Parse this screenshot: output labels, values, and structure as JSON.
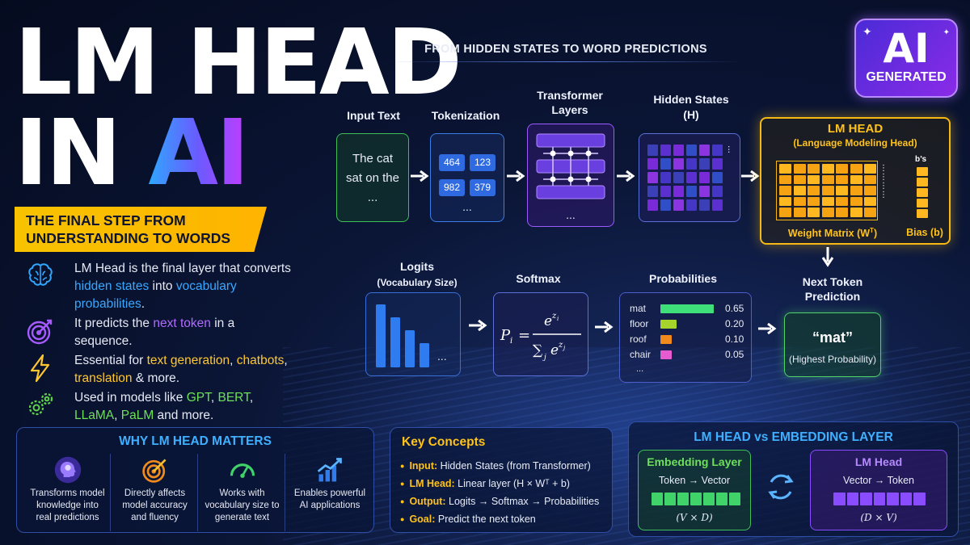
{
  "title": {
    "line1": "LM HEAD",
    "line2_prefix": "IN ",
    "line2_ai": "AI"
  },
  "banner": {
    "line1": "THE FINAL STEP FROM",
    "line2": "UNDERSTANDING TO WORDS"
  },
  "features": [
    {
      "icon": "brain-icon",
      "parts": [
        "LM Head is the final layer that converts ",
        "hidden states",
        " into ",
        "vocabulary probabilities",
        "."
      ]
    },
    {
      "icon": "target-icon",
      "parts": [
        "It predicts the ",
        "next token",
        " in a sequence."
      ]
    },
    {
      "icon": "lightning-icon",
      "parts": [
        "Essential for ",
        "text generation",
        ", ",
        "chatbots",
        ", ",
        "translation",
        " & more."
      ]
    },
    {
      "icon": "gears-icon",
      "parts": [
        "Used in models like ",
        "GPT",
        ", ",
        "BERT",
        ", ",
        "LLaMA",
        ", ",
        "PaLM",
        " and more."
      ]
    }
  ],
  "badge": {
    "line1": "AI",
    "line2": "GENERATED"
  },
  "pipeline": {
    "heading": "FROM HIDDEN STATES TO WORD PREDICTIONS",
    "input": {
      "label": "Input Text",
      "text1": "The cat",
      "text2": "sat on the",
      "text3": "..."
    },
    "tokenization": {
      "label": "Tokenization",
      "tokens": [
        "464",
        "123",
        "982",
        "379"
      ],
      "more": "..."
    },
    "transformer": {
      "label1": "Transformer",
      "label2": "Layers",
      "more": "..."
    },
    "hidden": {
      "label1": "Hidden States",
      "label2": "(H)",
      "more": "..."
    },
    "lmhead": {
      "title": "LM HEAD",
      "subtitle": "(Language Modeling Head)",
      "weight_label": "Weight Matrix (W",
      "weight_sup": "T",
      "weight_close": ")",
      "bias_label": "Bias (b)",
      "bias_top": "b’s"
    },
    "logits": {
      "label1": "Logits",
      "label2": "(Vocabulary Size)",
      "more": "..."
    },
    "softmax": {
      "label": "Softmax"
    },
    "probabilities": {
      "label": "Probabilities",
      "rows": [
        {
          "word": "mat",
          "value": "0.65",
          "fraction": 0.65,
          "color": "#3fe07a"
        },
        {
          "word": "floor",
          "value": "0.20",
          "fraction": 0.2,
          "color": "#a7d42a"
        },
        {
          "word": "roof",
          "value": "0.10",
          "fraction": 0.1,
          "color": "#f08a1c"
        },
        {
          "word": "chair",
          "value": "0.05",
          "fraction": 0.05,
          "color": "#e65bd0"
        }
      ],
      "more": "..."
    },
    "next": {
      "label1": "Next Token",
      "label2": "Prediction",
      "word": "“mat”",
      "sub": "(Highest Probability)"
    }
  },
  "why": {
    "title": "WHY LM HEAD MATTERS",
    "items": [
      {
        "icon": "head-icon",
        "text": "Transforms model knowledge into real predictions"
      },
      {
        "icon": "target-icon",
        "text": "Directly affects model accuracy and fluency"
      },
      {
        "icon": "gauge-icon",
        "text": "Works with vocabulary size to generate text"
      },
      {
        "icon": "growth-chart-icon",
        "text": "Enables powerful AI applications"
      }
    ]
  },
  "concepts": {
    "title": "Key Concepts",
    "items": [
      {
        "key": "Input:",
        "value": "Hidden States (from Transformer)"
      },
      {
        "key": "LM Head:",
        "value": "Linear layer (H × Wᵀ + b)"
      },
      {
        "key": "Output:",
        "value": "Logits → Softmax → Probabilities"
      },
      {
        "key": "Goal:",
        "value": "Predict the next token"
      }
    ]
  },
  "compare": {
    "title": "LM HEAD vs EMBEDDING LAYER",
    "left": {
      "title": "Embedding Layer",
      "sub": "Token → Vector",
      "dims": "(V × D)"
    },
    "right": {
      "title": "LM Head",
      "sub": "Vector → Token",
      "dims": "(D × V)"
    }
  },
  "colors": {
    "accent_yellow": "#f7c300",
    "accent_blue": "#2ea8ff",
    "accent_purple": "#8b3dff",
    "accent_green": "#3fd36a"
  }
}
